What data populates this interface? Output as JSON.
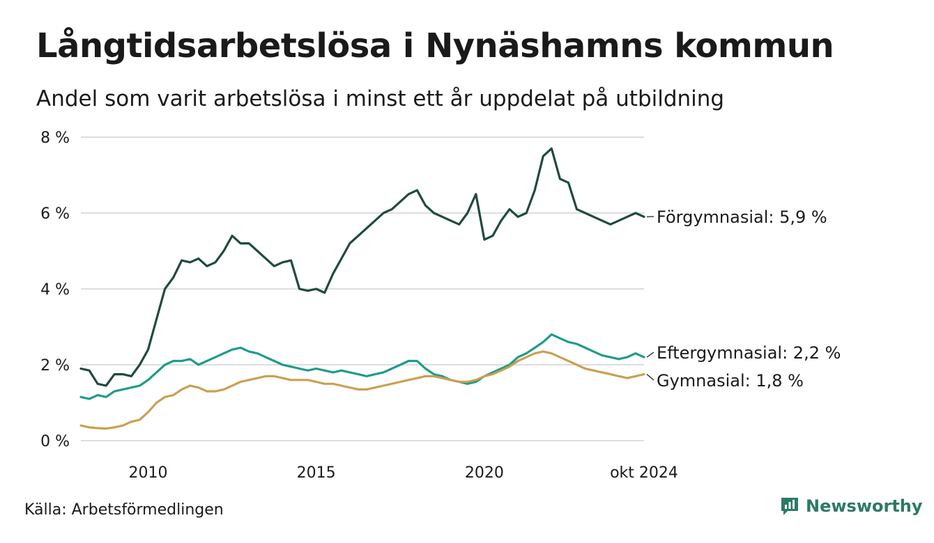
{
  "title": "Långtidsarbetslösa i Nynäshamns kommun",
  "subtitle": "Andel som varit arbetslösa i minst ett år uppdelat på utbildning",
  "source": "Källa: Arbetsförmedlingen",
  "brand": {
    "name": "Newsworthy",
    "icon": "newsworthy-logo-icon",
    "color": "#2c7a66"
  },
  "chart_data": {
    "type": "line",
    "title": "Långtidsarbetslösa i Nynäshamns kommun",
    "xlabel": "",
    "ylabel": "",
    "xlim": [
      2008.0,
      2024.75
    ],
    "ylim": [
      0,
      8
    ],
    "grid": true,
    "yticks": [
      {
        "value": 0,
        "label": "0 %"
      },
      {
        "value": 2,
        "label": "2 %"
      },
      {
        "value": 4,
        "label": "4 %"
      },
      {
        "value": 6,
        "label": "6 %"
      },
      {
        "value": 8,
        "label": "8 %"
      }
    ],
    "xticks": [
      {
        "value": 2010,
        "label": "2010"
      },
      {
        "value": 2015,
        "label": "2015"
      },
      {
        "value": 2020,
        "label": "2020"
      },
      {
        "value": 2024.75,
        "label": "okt 2024"
      }
    ],
    "series": [
      {
        "name": "Förgymnasial",
        "label": "Förgymnasial: 5,9 %",
        "color": "#1f4a40",
        "x": [
          2008.0,
          2008.25,
          2008.5,
          2008.75,
          2009.0,
          2009.25,
          2009.5,
          2009.75,
          2010.0,
          2010.25,
          2010.5,
          2010.75,
          2011.0,
          2011.25,
          2011.5,
          2011.75,
          2012.0,
          2012.25,
          2012.5,
          2012.75,
          2013.0,
          2013.25,
          2013.5,
          2013.75,
          2014.0,
          2014.25,
          2014.5,
          2014.75,
          2015.0,
          2015.25,
          2015.5,
          2015.75,
          2016.0,
          2016.25,
          2016.5,
          2016.75,
          2017.0,
          2017.25,
          2017.5,
          2017.75,
          2018.0,
          2018.25,
          2018.5,
          2018.75,
          2019.0,
          2019.25,
          2019.5,
          2019.75,
          2020.0,
          2020.25,
          2020.5,
          2020.75,
          2021.0,
          2021.25,
          2021.5,
          2021.75,
          2022.0,
          2022.25,
          2022.5,
          2022.75,
          2023.0,
          2023.25,
          2023.5,
          2023.75,
          2024.0,
          2024.25,
          2024.5,
          2024.75
        ],
        "values": [
          1.9,
          1.85,
          1.5,
          1.45,
          1.75,
          1.75,
          1.7,
          2.0,
          2.4,
          3.2,
          4.0,
          4.3,
          4.75,
          4.7,
          4.8,
          4.6,
          4.7,
          5.0,
          5.4,
          5.2,
          5.2,
          5.0,
          4.8,
          4.6,
          4.7,
          4.75,
          4.0,
          3.95,
          4.0,
          3.9,
          4.4,
          4.8,
          5.2,
          5.4,
          5.6,
          5.8,
          6.0,
          6.1,
          6.3,
          6.5,
          6.6,
          6.2,
          6.0,
          5.9,
          5.8,
          5.7,
          6.0,
          6.5,
          5.3,
          5.4,
          5.8,
          6.1,
          5.9,
          6.0,
          6.6,
          7.5,
          7.7,
          6.9,
          6.8,
          6.1,
          6.0,
          5.9,
          5.8,
          5.7,
          5.8,
          5.9,
          6.0,
          5.9
        ]
      },
      {
        "name": "Eftergymnasial",
        "label": "Eftergymnasial: 2,2 %",
        "color": "#1e9c8a",
        "x": [
          2008.0,
          2008.25,
          2008.5,
          2008.75,
          2009.0,
          2009.25,
          2009.5,
          2009.75,
          2010.0,
          2010.25,
          2010.5,
          2010.75,
          2011.0,
          2011.25,
          2011.5,
          2011.75,
          2012.0,
          2012.25,
          2012.5,
          2012.75,
          2013.0,
          2013.25,
          2013.5,
          2013.75,
          2014.0,
          2014.25,
          2014.5,
          2014.75,
          2015.0,
          2015.25,
          2015.5,
          2015.75,
          2016.0,
          2016.25,
          2016.5,
          2016.75,
          2017.0,
          2017.25,
          2017.5,
          2017.75,
          2018.0,
          2018.25,
          2018.5,
          2018.75,
          2019.0,
          2019.25,
          2019.5,
          2019.75,
          2020.0,
          2020.25,
          2020.5,
          2020.75,
          2021.0,
          2021.25,
          2021.5,
          2021.75,
          2022.0,
          2022.25,
          2022.5,
          2022.75,
          2023.0,
          2023.25,
          2023.5,
          2023.75,
          2024.0,
          2024.25,
          2024.5,
          2024.75
        ],
        "values": [
          1.15,
          1.1,
          1.2,
          1.15,
          1.3,
          1.35,
          1.4,
          1.45,
          1.6,
          1.8,
          2.0,
          2.1,
          2.1,
          2.15,
          2.0,
          2.1,
          2.2,
          2.3,
          2.4,
          2.45,
          2.35,
          2.3,
          2.2,
          2.1,
          2.0,
          1.95,
          1.9,
          1.85,
          1.9,
          1.85,
          1.8,
          1.85,
          1.8,
          1.75,
          1.7,
          1.75,
          1.8,
          1.9,
          2.0,
          2.1,
          2.1,
          1.9,
          1.75,
          1.7,
          1.6,
          1.55,
          1.5,
          1.55,
          1.7,
          1.8,
          1.9,
          2.0,
          2.2,
          2.3,
          2.45,
          2.6,
          2.8,
          2.7,
          2.6,
          2.55,
          2.45,
          2.35,
          2.25,
          2.2,
          2.15,
          2.2,
          2.3,
          2.2
        ]
      },
      {
        "name": "Gymnasial",
        "label": "Gymnasial: 1,8 %",
        "color": "#c9a052",
        "x": [
          2008.0,
          2008.25,
          2008.5,
          2008.75,
          2009.0,
          2009.25,
          2009.5,
          2009.75,
          2010.0,
          2010.25,
          2010.5,
          2010.75,
          2011.0,
          2011.25,
          2011.5,
          2011.75,
          2012.0,
          2012.25,
          2012.5,
          2012.75,
          2013.0,
          2013.25,
          2013.5,
          2013.75,
          2014.0,
          2014.25,
          2014.5,
          2014.75,
          2015.0,
          2015.25,
          2015.5,
          2015.75,
          2016.0,
          2016.25,
          2016.5,
          2016.75,
          2017.0,
          2017.25,
          2017.5,
          2017.75,
          2018.0,
          2018.25,
          2018.5,
          2018.75,
          2019.0,
          2019.25,
          2019.5,
          2019.75,
          2020.0,
          2020.25,
          2020.5,
          2020.75,
          2021.0,
          2021.25,
          2021.5,
          2021.75,
          2022.0,
          2022.25,
          2022.5,
          2022.75,
          2023.0,
          2023.25,
          2023.5,
          2023.75,
          2024.0,
          2024.25,
          2024.5,
          2024.75
        ],
        "values": [
          0.4,
          0.35,
          0.33,
          0.32,
          0.35,
          0.4,
          0.5,
          0.55,
          0.75,
          1.0,
          1.15,
          1.2,
          1.35,
          1.45,
          1.4,
          1.3,
          1.3,
          1.35,
          1.45,
          1.55,
          1.6,
          1.65,
          1.7,
          1.7,
          1.65,
          1.6,
          1.6,
          1.6,
          1.55,
          1.5,
          1.5,
          1.45,
          1.4,
          1.35,
          1.35,
          1.4,
          1.45,
          1.5,
          1.55,
          1.6,
          1.65,
          1.7,
          1.7,
          1.65,
          1.6,
          1.55,
          1.55,
          1.6,
          1.7,
          1.75,
          1.85,
          1.95,
          2.1,
          2.2,
          2.3,
          2.35,
          2.3,
          2.2,
          2.1,
          2.0,
          1.9,
          1.85,
          1.8,
          1.75,
          1.7,
          1.65,
          1.7,
          1.75
        ]
      }
    ]
  }
}
